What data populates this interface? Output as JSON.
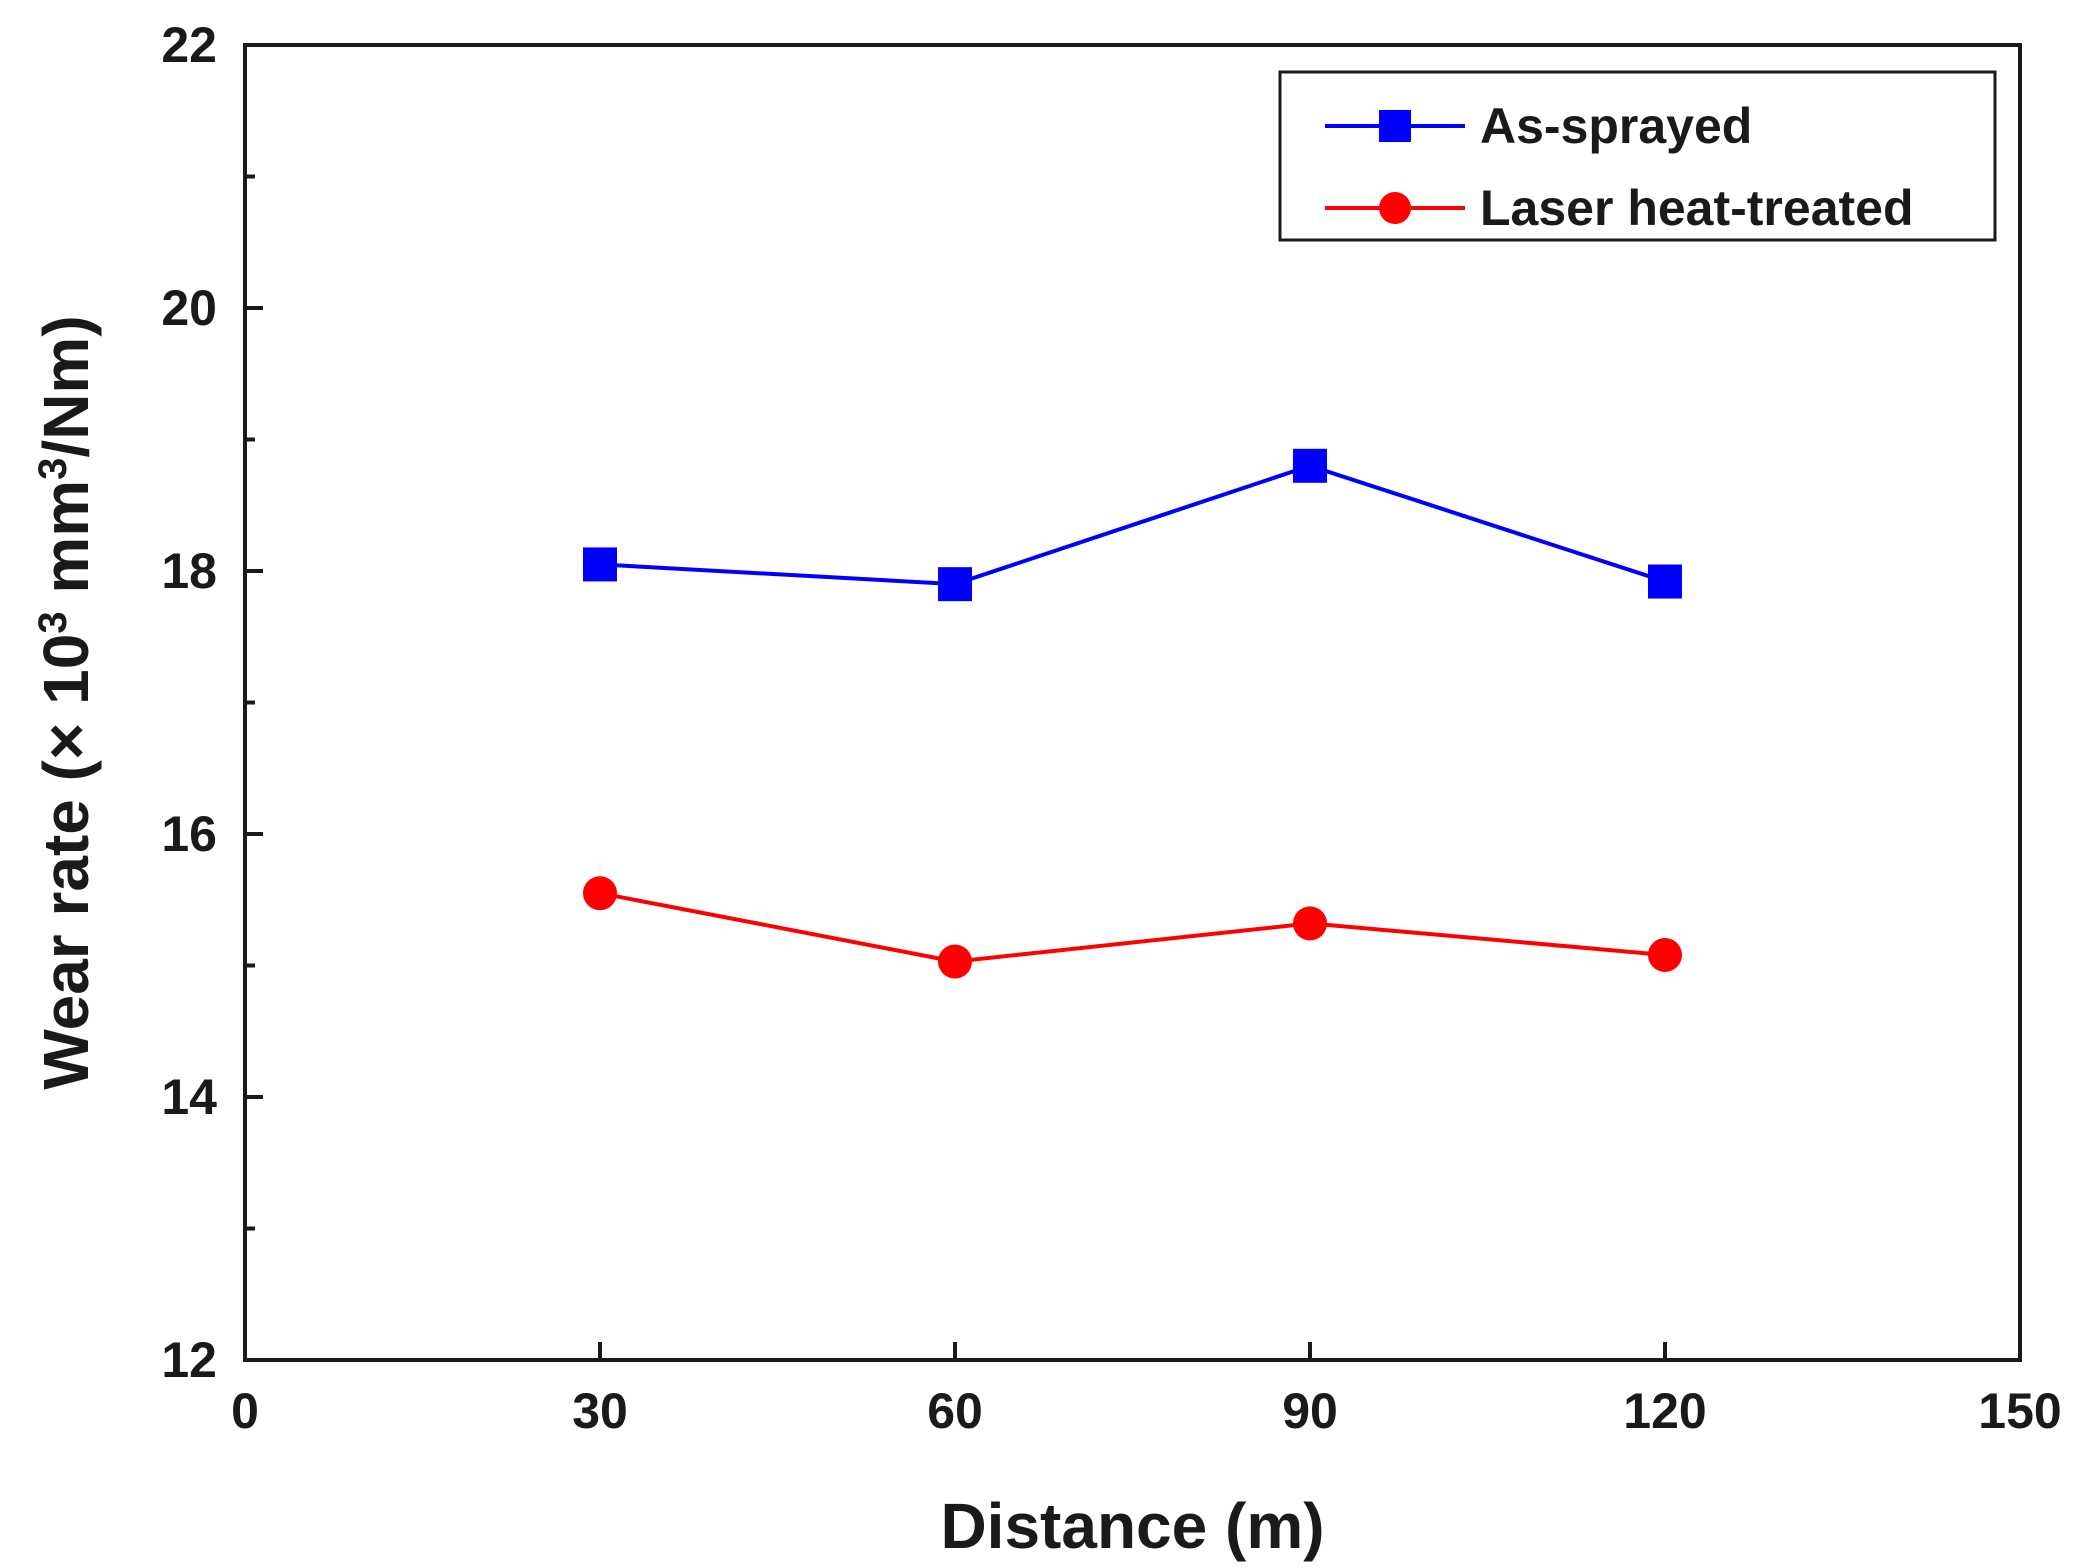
{
  "chart_data": {
    "type": "line",
    "title": "",
    "xlabel": "Distance (m)",
    "ylabel_parts": {
      "prefix": "Wear rate (× 10",
      "exp1": "3",
      "middle": " mm",
      "exp2": "3",
      "suffix": "/Nm)"
    },
    "xlim": [
      0,
      150
    ],
    "ylim": [
      12,
      22
    ],
    "xticks": [
      0,
      30,
      60,
      90,
      120,
      150
    ],
    "xtick_labels": [
      "0",
      "30",
      "60",
      "90",
      "120",
      "150"
    ],
    "yticks": [
      12,
      14,
      16,
      18,
      20,
      22
    ],
    "ytick_labels": [
      "12",
      "14",
      "16",
      "18",
      "20",
      "22"
    ],
    "yminor": [
      13,
      15,
      17,
      19,
      21
    ],
    "grid": false,
    "legend_position": "top-right",
    "x": [
      30,
      60,
      90,
      120
    ],
    "series": [
      {
        "name": "As-sprayed",
        "marker": "square",
        "color": "#0000ff",
        "values": [
          18.05,
          17.9,
          18.8,
          17.92
        ]
      },
      {
        "name": "Laser heat-treated",
        "marker": "circle",
        "color": "#ff0000",
        "values": [
          15.55,
          15.03,
          15.32,
          15.08
        ]
      }
    ]
  }
}
